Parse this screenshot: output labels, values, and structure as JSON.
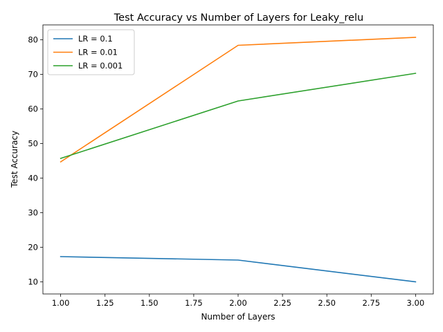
{
  "chart_data": {
    "type": "line",
    "title": "Test Accuracy vs Number of Layers for Leaky_relu",
    "xlabel": "Number of Layers",
    "ylabel": "Test Accuracy",
    "x": [
      1,
      2,
      3
    ],
    "xlim": [
      0.9,
      3.1
    ],
    "ylim": [
      6.5,
      84.3
    ],
    "xticks": [
      "1.00",
      "1.25",
      "1.50",
      "1.75",
      "2.00",
      "2.25",
      "2.50",
      "2.75",
      "3.00"
    ],
    "yticks": [
      "10",
      "20",
      "30",
      "40",
      "50",
      "60",
      "70",
      "80"
    ],
    "grid": false,
    "legend_position": "upper-left",
    "series": [
      {
        "name": "LR = 0.1",
        "color": "#1f77b4",
        "values": [
          17.3,
          16.3,
          10.0
        ]
      },
      {
        "name": "LR = 0.01",
        "color": "#ff7f0e",
        "values": [
          44.7,
          78.4,
          80.7
        ]
      },
      {
        "name": "LR = 0.001",
        "color": "#2ca02c",
        "values": [
          45.7,
          62.3,
          70.3
        ]
      }
    ]
  }
}
